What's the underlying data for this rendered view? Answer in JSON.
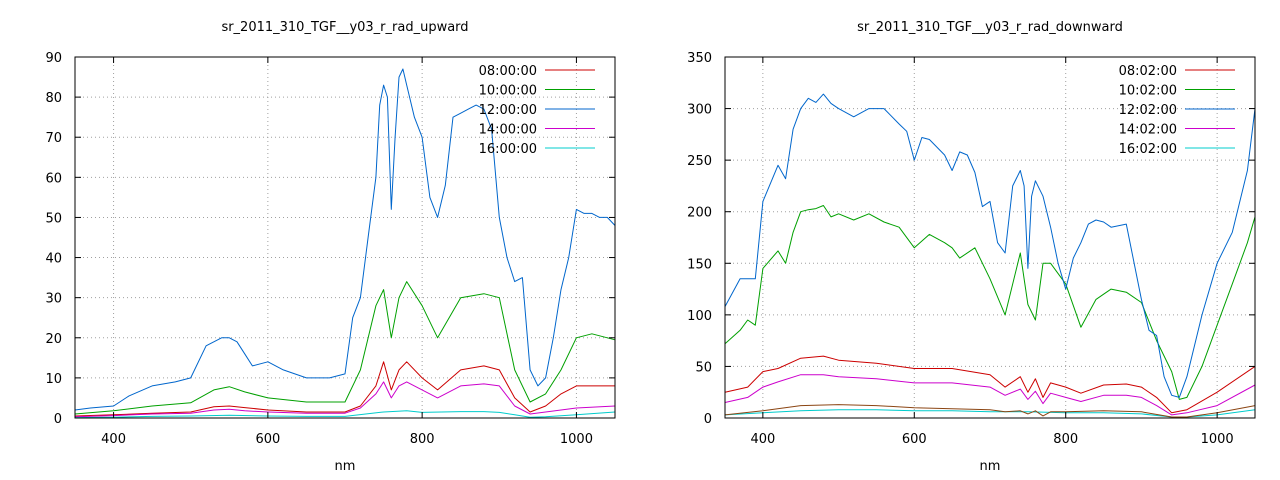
{
  "chart_data": [
    {
      "type": "line",
      "title": "sr_2011_310_TGF__y03_r_rad_upward",
      "xlabel": "nm",
      "ylabel": "",
      "xlim": [
        350,
        1050
      ],
      "ylim": [
        0,
        90
      ],
      "xticks": [
        400,
        600,
        800,
        1000
      ],
      "yticks": [
        0,
        10,
        20,
        30,
        40,
        50,
        60,
        70,
        80,
        90
      ],
      "grid": true,
      "legend_position": "top-right",
      "series": [
        {
          "name": "08:00:00",
          "color": "#cc0000",
          "x": [
            350,
            400,
            450,
            500,
            530,
            550,
            570,
            600,
            650,
            700,
            720,
            740,
            750,
            760,
            770,
            780,
            800,
            820,
            850,
            880,
            900,
            920,
            940,
            960,
            980,
            1000,
            1050
          ],
          "y": [
            0.5,
            0.8,
            1.2,
            1.5,
            2.8,
            3,
            2.6,
            2,
            1.5,
            1.5,
            3,
            8,
            14,
            7,
            12,
            14,
            10,
            7,
            12,
            13,
            12,
            5,
            1.5,
            3,
            6,
            8,
            8
          ]
        },
        {
          "name": "10:00:00",
          "color": "#00a000",
          "x": [
            350,
            400,
            450,
            500,
            530,
            550,
            570,
            600,
            650,
            700,
            720,
            740,
            750,
            760,
            770,
            780,
            800,
            820,
            850,
            880,
            900,
            920,
            940,
            960,
            980,
            1000,
            1020,
            1050
          ],
          "y": [
            1,
            1.8,
            3,
            3.8,
            7,
            7.8,
            6.5,
            5,
            4,
            4,
            12,
            28,
            32,
            20,
            30,
            34,
            28,
            20,
            30,
            31,
            30,
            12,
            4,
            6,
            12,
            20,
            21,
            19.5
          ]
        },
        {
          "name": "12:00:00",
          "color": "#0066cc",
          "x": [
            350,
            370,
            400,
            420,
            450,
            480,
            500,
            520,
            540,
            550,
            560,
            570,
            580,
            600,
            620,
            650,
            680,
            700,
            710,
            720,
            730,
            740,
            745,
            750,
            755,
            760,
            765,
            770,
            775,
            780,
            790,
            800,
            810,
            820,
            830,
            840,
            850,
            860,
            870,
            880,
            890,
            900,
            910,
            920,
            930,
            940,
            950,
            960,
            970,
            980,
            990,
            1000,
            1010,
            1020,
            1030,
            1040,
            1050
          ],
          "y": [
            2,
            2.5,
            3,
            5.5,
            8,
            9,
            10,
            18,
            20,
            20,
            19,
            16,
            13,
            14,
            12,
            10,
            10,
            11,
            25,
            30,
            45,
            60,
            78,
            83,
            80,
            52,
            70,
            85,
            87,
            83,
            75,
            70,
            55,
            50,
            58,
            75,
            76,
            77,
            78,
            77,
            72,
            50,
            40,
            34,
            35,
            12,
            8,
            10,
            20,
            32,
            40,
            52,
            51,
            51,
            50,
            50,
            48
          ]
        },
        {
          "name": "14:00:00",
          "color": "#cc00cc",
          "x": [
            350,
            400,
            450,
            500,
            530,
            550,
            570,
            600,
            650,
            700,
            720,
            740,
            750,
            760,
            770,
            780,
            800,
            820,
            850,
            880,
            900,
            920,
            940,
            960,
            980,
            1000,
            1050
          ],
          "y": [
            0.3,
            0.6,
            1,
            1.2,
            2,
            2.2,
            1.8,
            1.5,
            1.2,
            1.2,
            2.5,
            6,
            9,
            5,
            8,
            9,
            7,
            5,
            8,
            8.5,
            8,
            3,
            1,
            1.5,
            2,
            2.5,
            3
          ]
        },
        {
          "name": "16:00:00",
          "color": "#00cccc",
          "x": [
            350,
            400,
            450,
            500,
            550,
            600,
            650,
            700,
            750,
            780,
            800,
            850,
            880,
            900,
            920,
            940,
            960,
            1000,
            1050
          ],
          "y": [
            0.1,
            0.2,
            0.4,
            0.5,
            0.7,
            0.5,
            0.4,
            0.4,
            1.5,
            1.8,
            1.4,
            1.6,
            1.6,
            1.4,
            0.8,
            0.2,
            0.3,
            0.8,
            1.5
          ]
        }
      ]
    },
    {
      "type": "line",
      "title": "sr_2011_310_TGF__y03_r_rad_downward",
      "xlabel": "nm",
      "ylabel": "",
      "xlim": [
        350,
        1050
      ],
      "ylim": [
        0,
        350
      ],
      "xticks": [
        400,
        600,
        800,
        1000
      ],
      "yticks": [
        0,
        50,
        100,
        150,
        200,
        250,
        300,
        350
      ],
      "grid": true,
      "legend_position": "top-right",
      "series": [
        {
          "name": "08:02:00",
          "color": "#cc0000",
          "x": [
            350,
            380,
            400,
            420,
            450,
            480,
            500,
            550,
            600,
            650,
            700,
            720,
            740,
            750,
            760,
            770,
            780,
            800,
            820,
            850,
            880,
            900,
            920,
            940,
            960,
            1000,
            1050
          ],
          "y": [
            25,
            30,
            45,
            48,
            58,
            60,
            56,
            53,
            48,
            48,
            42,
            30,
            40,
            25,
            38,
            20,
            34,
            30,
            24,
            32,
            33,
            30,
            20,
            5,
            8,
            25,
            50
          ]
        },
        {
          "name": "10:02:00",
          "color": "#00a000",
          "x": [
            350,
            370,
            380,
            390,
            400,
            420,
            430,
            440,
            450,
            460,
            470,
            480,
            490,
            500,
            520,
            540,
            560,
            580,
            600,
            620,
            640,
            650,
            660,
            680,
            700,
            720,
            740,
            750,
            760,
            770,
            780,
            800,
            820,
            840,
            850,
            860,
            880,
            900,
            920,
            940,
            950,
            960,
            980,
            1000,
            1020,
            1040,
            1050
          ],
          "y": [
            72,
            85,
            95,
            90,
            145,
            162,
            150,
            180,
            200,
            202,
            203,
            206,
            195,
            198,
            192,
            198,
            190,
            185,
            165,
            178,
            170,
            165,
            155,
            165,
            135,
            100,
            160,
            110,
            95,
            150,
            150,
            130,
            88,
            115,
            120,
            125,
            122,
            112,
            75,
            45,
            18,
            20,
            50,
            90,
            130,
            170,
            195
          ]
        },
        {
          "name": "12:02:00",
          "color": "#0066cc",
          "x": [
            350,
            370,
            380,
            390,
            400,
            420,
            430,
            440,
            450,
            460,
            470,
            480,
            490,
            500,
            520,
            540,
            560,
            580,
            590,
            600,
            610,
            620,
            640,
            650,
            660,
            670,
            680,
            690,
            700,
            710,
            720,
            730,
            740,
            745,
            750,
            755,
            760,
            770,
            780,
            790,
            800,
            810,
            820,
            830,
            840,
            850,
            860,
            880,
            900,
            910,
            920,
            930,
            940,
            950,
            960,
            980,
            1000,
            1020,
            1040,
            1050
          ],
          "y": [
            108,
            135,
            135,
            135,
            210,
            245,
            232,
            280,
            300,
            310,
            306,
            314,
            305,
            300,
            292,
            300,
            300,
            285,
            278,
            250,
            272,
            270,
            255,
            240,
            258,
            255,
            238,
            205,
            210,
            170,
            160,
            225,
            240,
            225,
            145,
            215,
            230,
            215,
            185,
            150,
            125,
            155,
            170,
            188,
            192,
            190,
            185,
            188,
            115,
            85,
            80,
            40,
            22,
            20,
            40,
            100,
            150,
            180,
            240,
            300
          ]
        },
        {
          "name": "14:02:00",
          "color": "#cc00cc",
          "x": [
            350,
            380,
            400,
            420,
            450,
            480,
            500,
            550,
            600,
            650,
            700,
            720,
            740,
            750,
            760,
            770,
            780,
            800,
            820,
            850,
            880,
            900,
            920,
            940,
            960,
            1000,
            1050
          ],
          "y": [
            15,
            20,
            30,
            35,
            42,
            42,
            40,
            38,
            34,
            34,
            30,
            22,
            28,
            18,
            26,
            14,
            24,
            20,
            16,
            22,
            22,
            20,
            12,
            3,
            5,
            12,
            32
          ]
        },
        {
          "name": "16:02:00",
          "color": "#00cccc",
          "x": [
            350,
            400,
            450,
            500,
            550,
            600,
            650,
            700,
            750,
            800,
            850,
            900,
            940,
            960,
            1000,
            1050
          ],
          "y": [
            3,
            5,
            7,
            8,
            8,
            7,
            7,
            6,
            6,
            5,
            5,
            4,
            1,
            1,
            3,
            8
          ]
        },
        {
          "name": "",
          "color": "#8b4513",
          "x": [
            350,
            400,
            450,
            500,
            550,
            600,
            650,
            700,
            720,
            740,
            750,
            760,
            770,
            780,
            800,
            850,
            900,
            940,
            960,
            1000,
            1050
          ],
          "y": [
            3,
            7,
            12,
            13,
            12,
            10,
            9,
            8,
            6,
            7,
            4,
            7,
            2,
            6,
            6,
            7,
            6,
            1,
            1,
            5,
            12
          ]
        }
      ]
    }
  ]
}
